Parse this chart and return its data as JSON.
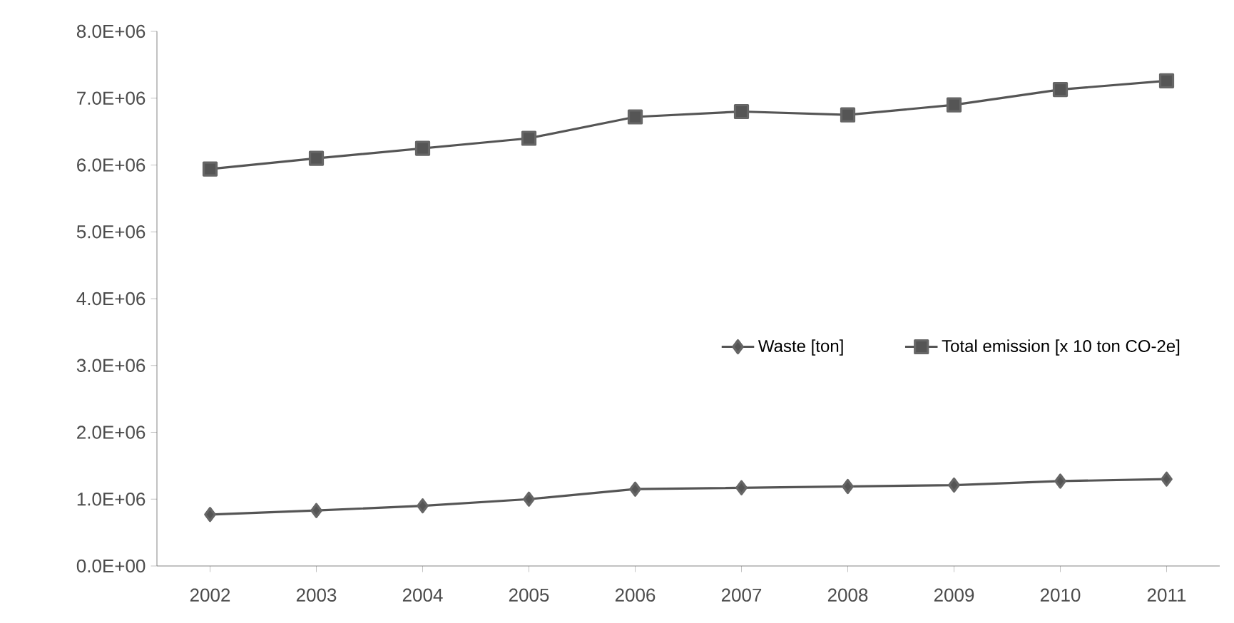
{
  "chart_data": {
    "type": "line",
    "categories": [
      "2002",
      "2003",
      "2004",
      "2005",
      "2006",
      "2007",
      "2008",
      "2009",
      "2010",
      "2011"
    ],
    "series": [
      {
        "name": "Waste [ton]",
        "color": "#555555",
        "marker": "diamond",
        "values": [
          770000,
          830000,
          900000,
          1000000,
          1150000,
          1170000,
          1190000,
          1210000,
          1270000,
          1300000
        ]
      },
      {
        "name": "Total emission [x 10 ton CO-2e]",
        "color": "#555555",
        "marker": "square",
        "values": [
          5940000,
          6100000,
          6250000,
          6400000,
          6720000,
          6800000,
          6750000,
          6900000,
          7130000,
          7260000
        ]
      }
    ],
    "ylim": [
      0,
      8000000
    ],
    "yticks": [
      {
        "value": 0,
        "label": "0.0E+00"
      },
      {
        "value": 1000000,
        "label": "1.0E+06"
      },
      {
        "value": 2000000,
        "label": "2.0E+06"
      },
      {
        "value": 3000000,
        "label": "3.0E+06"
      },
      {
        "value": 4000000,
        "label": "4.0E+06"
      },
      {
        "value": 5000000,
        "label": "5.0E+06"
      },
      {
        "value": 6000000,
        "label": "6.0E+06"
      },
      {
        "value": 7000000,
        "label": "7.0E+06"
      },
      {
        "value": 8000000,
        "label": "8.0E+06"
      }
    ],
    "grid": false,
    "legend": "right",
    "line_style": "solid"
  }
}
